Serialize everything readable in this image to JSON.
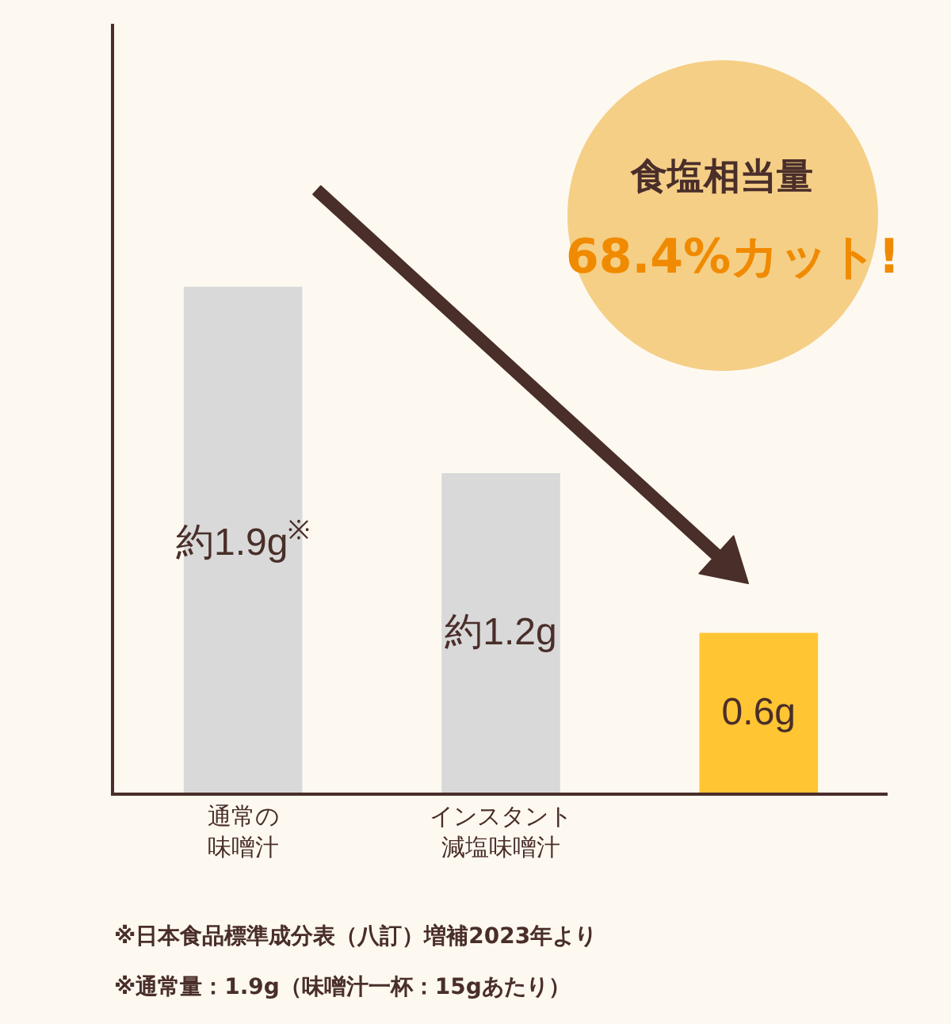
{
  "chart_data": {
    "type": "bar",
    "categories": [
      "通常の味噌汁",
      "インスタント減塩味噌汁",
      null
    ],
    "values": [
      1.9,
      1.2,
      0.6
    ],
    "colors": [
      "#d9d9d9",
      "#d9d9d9",
      "#ffc533"
    ],
    "value_labels": [
      "約1.9g$^{※}$",
      "約1.2g",
      "0.6g"
    ],
    "grid": false,
    "legend": false,
    "annotations": [
      "食塩相当量",
      "68.4%カット!",
      "※日本食品標準成分表（八訂）増補2023年より",
      "※通常量：1.9g（味噌汁一杯：15gあたり）"
    ]
  }
}
